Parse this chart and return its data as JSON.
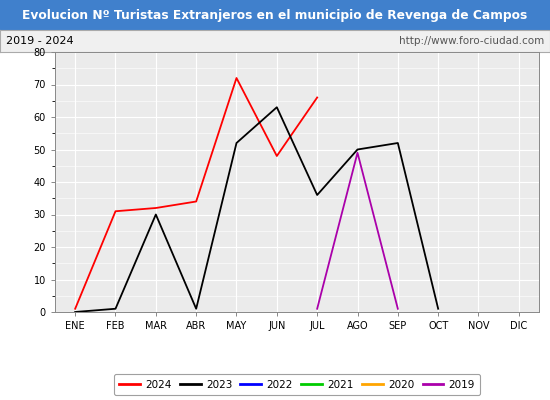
{
  "title": "Evolucion Nº Turistas Extranjeros en el municipio de Revenga de Campos",
  "subtitle_left": "2019 - 2024",
  "subtitle_right": "http://www.foro-ciudad.com",
  "months": [
    "ENE",
    "FEB",
    "MAR",
    "ABR",
    "MAY",
    "JUN",
    "JUL",
    "AGO",
    "SEP",
    "OCT",
    "NOV",
    "DIC"
  ],
  "series": {
    "2024": {
      "color": "#ff0000",
      "data": [
        1,
        31,
        32,
        34,
        72,
        48,
        66,
        null,
        null,
        null,
        null,
        null
      ]
    },
    "2023": {
      "color": "#000000",
      "data": [
        0,
        1,
        30,
        1,
        52,
        63,
        36,
        50,
        52,
        1,
        null,
        null
      ]
    },
    "2022": {
      "color": "#0000ff",
      "data": [
        null,
        null,
        null,
        null,
        null,
        null,
        null,
        null,
        null,
        null,
        null,
        null
      ]
    },
    "2021": {
      "color": "#00cc00",
      "data": [
        null,
        null,
        null,
        null,
        null,
        null,
        null,
        null,
        null,
        null,
        null,
        null
      ]
    },
    "2020": {
      "color": "#ffa500",
      "data": [
        null,
        null,
        null,
        null,
        null,
        null,
        null,
        null,
        null,
        null,
        null,
        null
      ]
    },
    "2019": {
      "color": "#aa00aa",
      "data": [
        null,
        null,
        null,
        null,
        null,
        null,
        1,
        49,
        1,
        null,
        null,
        null
      ]
    }
  },
  "ylim": [
    0,
    80
  ],
  "yticks": [
    0,
    10,
    20,
    30,
    40,
    50,
    60,
    70,
    80
  ],
  "title_bg_color": "#4080cc",
  "title_text_color": "#ffffff",
  "subtitle_bg_color": "#f0f0f0",
  "subtitle_text_color": "#000000",
  "plot_bg_color": "#ebebeb",
  "grid_color": "#ffffff",
  "legend_order": [
    "2024",
    "2023",
    "2022",
    "2021",
    "2020",
    "2019"
  ]
}
